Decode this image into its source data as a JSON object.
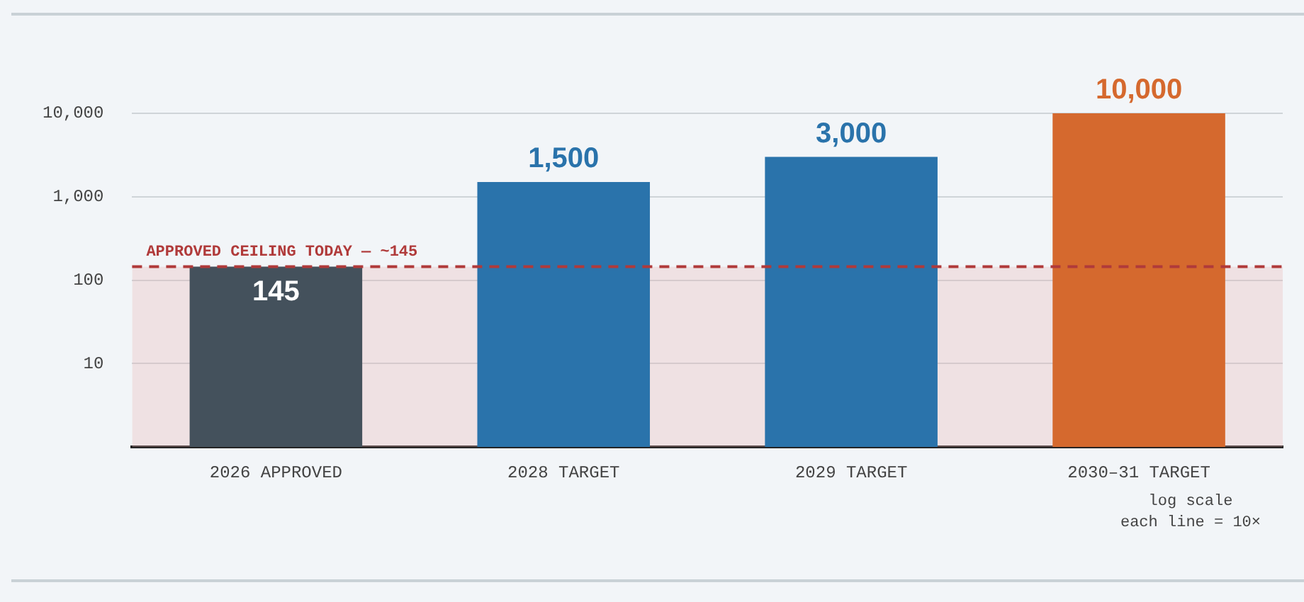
{
  "chart_data": {
    "type": "bar",
    "categories": [
      "2026 APPROVED",
      "2028 TARGET",
      "2029 TARGET",
      "2030–31 TARGET"
    ],
    "values": [
      145,
      1500,
      3000,
      10000
    ],
    "colors": [
      "#44515c",
      "#2a73ab",
      "#2a73ab",
      "#d5692e"
    ],
    "value_labels": [
      "145",
      "1,500",
      "3,000",
      "10,000"
    ],
    "log": true,
    "ylim": [
      1,
      10000
    ],
    "yticks": [
      {
        "value": 10,
        "label": "10"
      },
      {
        "value": 100,
        "label": "100"
      },
      {
        "value": 1000,
        "label": "1,000"
      },
      {
        "value": 10000,
        "label": "10,000"
      }
    ],
    "grid": "y",
    "legend": false,
    "ref_lines": [
      {
        "axis": "y",
        "value": 145,
        "label": "APPROVED CEILING TODAY — ~145",
        "color": "#b03a3a",
        "line_style": "dashed"
      }
    ],
    "bands": [
      {
        "axis": "y",
        "from": 1,
        "to": 145,
        "color": "#e8b4b4"
      }
    ],
    "annotations": [
      "log scale",
      "each line = 10×"
    ]
  }
}
